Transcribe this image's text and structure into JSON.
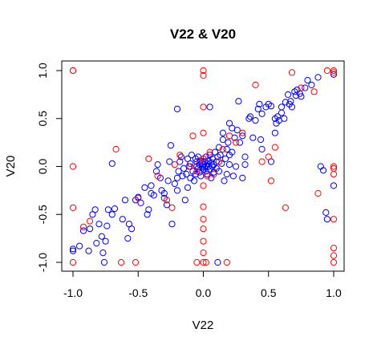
{
  "chart_data": {
    "type": "scatter",
    "title": "V22 & V20",
    "xlabel": "V22",
    "ylabel": "V20",
    "xlim": [
      -1.0,
      1.0
    ],
    "ylim": [
      -1.0,
      1.0
    ],
    "xticks": [
      "-1.0",
      "-0.5",
      "0.0",
      "0.5",
      "1.0"
    ],
    "yticks": [
      "-1.0",
      "-0.5",
      "0.0",
      "0.5",
      "1.0"
    ],
    "grid": false,
    "legend": "none",
    "series": [
      {
        "color": "#0000ff",
        "points": [
          [
            -1.0,
            -0.86
          ],
          [
            -1.0,
            -0.88
          ],
          [
            -0.95,
            -0.83
          ],
          [
            -0.92,
            -0.67
          ],
          [
            -0.88,
            -0.88
          ],
          [
            -0.87,
            -0.65
          ],
          [
            -0.85,
            -0.5
          ],
          [
            -0.83,
            -0.45
          ],
          [
            -0.82,
            -0.8
          ],
          [
            -0.8,
            -0.6
          ],
          [
            -0.78,
            -0.73
          ],
          [
            -0.77,
            -0.9
          ],
          [
            -0.76,
            -1.0
          ],
          [
            -0.75,
            -0.78
          ],
          [
            -0.74,
            -0.62
          ],
          [
            -0.73,
            -0.45
          ],
          [
            -0.7,
            -0.5
          ],
          [
            -0.68,
            -0.44
          ],
          [
            -0.62,
            -0.55
          ],
          [
            -0.6,
            -0.35
          ],
          [
            -0.58,
            -0.75
          ],
          [
            -0.57,
            -0.6
          ],
          [
            -0.55,
            -0.65
          ],
          [
            -0.52,
            -0.35
          ],
          [
            -0.5,
            -0.32
          ],
          [
            -0.48,
            -0.38
          ],
          [
            -0.45,
            -0.22
          ],
          [
            -0.43,
            -0.5
          ],
          [
            -0.42,
            -0.45
          ],
          [
            -0.4,
            -0.2
          ],
          [
            -0.4,
            -0.28
          ],
          [
            -0.38,
            -0.3
          ],
          [
            -0.36,
            -0.05
          ],
          [
            -0.35,
            0.02
          ],
          [
            -0.33,
            -0.12
          ],
          [
            -0.32,
            -0.25
          ],
          [
            -0.3,
            -0.28
          ],
          [
            -0.3,
            -0.33
          ],
          [
            -0.28,
            -0.4
          ],
          [
            -0.27,
            -0.15
          ],
          [
            -0.26,
            0.05
          ],
          [
            -0.25,
            0.22
          ],
          [
            -0.24,
            -0.6
          ],
          [
            -0.22,
            -0.18
          ],
          [
            -0.2,
            -0.12
          ],
          [
            -0.2,
            -0.25
          ],
          [
            -0.19,
            -0.05
          ],
          [
            -0.18,
            0.05
          ],
          [
            -0.17,
            0.1
          ],
          [
            -0.16,
            -0.1
          ],
          [
            -0.15,
            -0.02
          ],
          [
            -0.14,
            -0.35
          ],
          [
            -0.13,
            -0.08
          ],
          [
            -0.12,
            0.08
          ],
          [
            -0.12,
            -0.22
          ],
          [
            -0.11,
            0.0
          ],
          [
            -0.1,
            -0.12
          ],
          [
            -0.1,
            0.03
          ],
          [
            -0.09,
            0.12
          ],
          [
            -0.08,
            -0.05
          ],
          [
            -0.07,
            -0.15
          ],
          [
            -0.06,
            0.08
          ],
          [
            -0.06,
            -0.08
          ],
          [
            -0.05,
            0.0
          ],
          [
            -0.05,
            0.05
          ],
          [
            -0.04,
            -0.02
          ],
          [
            -0.04,
            0.1
          ],
          [
            -0.03,
            0.02
          ],
          [
            -0.03,
            -0.06
          ],
          [
            -0.02,
            0.06
          ],
          [
            -0.02,
            -0.1
          ],
          [
            -0.01,
            0.0
          ],
          [
            -0.01,
            0.04
          ],
          [
            0.0,
            0.02
          ],
          [
            0.0,
            -0.03
          ],
          [
            0.0,
            0.08
          ],
          [
            0.01,
            -0.01
          ],
          [
            0.01,
            0.05
          ],
          [
            0.02,
            0.0
          ],
          [
            0.02,
            0.1
          ],
          [
            0.02,
            -0.05
          ],
          [
            0.03,
            0.03
          ],
          [
            0.03,
            -0.08
          ],
          [
            0.04,
            0.06
          ],
          [
            0.04,
            0.0
          ],
          [
            0.05,
            0.12
          ],
          [
            0.05,
            -0.03
          ],
          [
            0.06,
            0.04
          ],
          [
            0.06,
            -0.12
          ],
          [
            0.07,
            0.0
          ],
          [
            0.07,
            0.08
          ],
          [
            0.08,
            0.02
          ],
          [
            0.08,
            -0.06
          ],
          [
            0.09,
            0.15
          ],
          [
            0.1,
            0.05
          ],
          [
            0.1,
            -0.02
          ],
          [
            0.11,
            0.1
          ],
          [
            0.12,
            0.2
          ],
          [
            0.12,
            -0.05
          ],
          [
            0.13,
            0.12
          ],
          [
            0.14,
            0.03
          ],
          [
            0.15,
            0.28
          ],
          [
            0.15,
            0.35
          ],
          [
            0.16,
            -0.15
          ],
          [
            0.17,
            0.08
          ],
          [
            0.18,
            0.18
          ],
          [
            0.18,
            -0.08
          ],
          [
            0.19,
            0.25
          ],
          [
            0.2,
            0.45
          ],
          [
            0.2,
            0.02
          ],
          [
            0.22,
            0.4
          ],
          [
            0.22,
            0.15
          ],
          [
            0.23,
            -0.1
          ],
          [
            0.24,
            0.3
          ],
          [
            0.25,
            0.0
          ],
          [
            0.26,
            0.38
          ],
          [
            0.27,
            0.68
          ],
          [
            0.28,
            0.25
          ],
          [
            0.3,
            0.32
          ],
          [
            0.3,
            -0.12
          ],
          [
            0.32,
            0.1
          ],
          [
            0.32,
            0.02
          ],
          [
            0.35,
            0.5
          ],
          [
            0.36,
            0.52
          ],
          [
            0.38,
            0.3
          ],
          [
            0.4,
            0.48
          ],
          [
            0.42,
            0.6
          ],
          [
            0.43,
            0.65
          ],
          [
            0.44,
            0.28
          ],
          [
            0.45,
            0.55
          ],
          [
            0.48,
            0.62
          ],
          [
            0.5,
            0.65
          ],
          [
            0.52,
            0.63
          ],
          [
            0.55,
            0.5
          ],
          [
            0.56,
            0.45
          ],
          [
            0.57,
            0.52
          ],
          [
            0.58,
            0.48
          ],
          [
            0.6,
            0.56
          ],
          [
            0.6,
            0.62
          ],
          [
            0.62,
            0.5
          ],
          [
            0.63,
            0.67
          ],
          [
            0.65,
            0.75
          ],
          [
            0.66,
            0.65
          ],
          [
            0.67,
            0.68
          ],
          [
            0.68,
            0.62
          ],
          [
            0.7,
            0.78
          ],
          [
            0.71,
            0.74
          ],
          [
            0.72,
            0.8
          ],
          [
            0.74,
            0.76
          ],
          [
            0.75,
            0.73
          ],
          [
            0.78,
            0.82
          ],
          [
            0.8,
            0.9
          ],
          [
            0.83,
            0.85
          ],
          [
            0.88,
            0.93
          ],
          [
            0.9,
            0.0
          ],
          [
            0.92,
            -0.04
          ],
          [
            0.94,
            -0.48
          ],
          [
            0.95,
            -0.55
          ],
          [
            1.0,
            0.96
          ],
          [
            1.0,
            -0.2
          ],
          [
            0.11,
            -1.0
          ],
          [
            -0.7,
            0.03
          ],
          [
            -0.2,
            0.6
          ],
          [
            0.05,
            0.62
          ],
          [
            0.2,
            0.12
          ],
          [
            0.55,
            0.35
          ],
          [
            0.52,
            0.05
          ],
          [
            0.45,
            0.18
          ]
        ]
      },
      {
        "color": "#ff0000",
        "points": [
          [
            -1.0,
            1.0
          ],
          [
            -1.0,
            1.0
          ],
          [
            -1.0,
            0.0
          ],
          [
            -1.0,
            -0.43
          ],
          [
            -1.0,
            -1.0
          ],
          [
            -0.92,
            -0.63
          ],
          [
            -0.87,
            -0.57
          ],
          [
            -0.67,
            0.18
          ],
          [
            -0.63,
            -1.0
          ],
          [
            -0.52,
            -1.0
          ],
          [
            -0.5,
            -0.33
          ],
          [
            -0.42,
            0.08
          ],
          [
            -0.35,
            -0.1
          ],
          [
            -0.28,
            -0.35
          ],
          [
            -0.24,
            -0.43
          ],
          [
            -0.22,
            0.02
          ],
          [
            -0.08,
            0.32
          ],
          [
            -0.05,
            -0.05
          ],
          [
            -0.1,
            0.0
          ],
          [
            0.0,
            1.0
          ],
          [
            0.0,
            0.95
          ],
          [
            0.0,
            0.62
          ],
          [
            0.0,
            0.35
          ],
          [
            0.0,
            0.08
          ],
          [
            0.0,
            -0.2
          ],
          [
            0.0,
            -0.42
          ],
          [
            0.0,
            -0.55
          ],
          [
            0.0,
            -0.65
          ],
          [
            0.0,
            -0.78
          ],
          [
            0.0,
            -0.9
          ],
          [
            0.0,
            -1.0
          ],
          [
            -0.05,
            -1.0
          ],
          [
            0.02,
            -1.0
          ],
          [
            0.08,
            -0.08
          ],
          [
            0.05,
            0.15
          ],
          [
            0.12,
            0.05
          ],
          [
            0.18,
            -1.0
          ],
          [
            0.2,
            0.32
          ],
          [
            0.25,
            0.25
          ],
          [
            0.3,
            0.35
          ],
          [
            0.4,
            0.85
          ],
          [
            0.45,
            0.05
          ],
          [
            0.5,
            0.1
          ],
          [
            0.52,
            -0.15
          ],
          [
            0.55,
            0.2
          ],
          [
            0.63,
            -0.43
          ],
          [
            0.68,
            0.98
          ],
          [
            0.75,
            0.82
          ],
          [
            0.85,
            0.78
          ],
          [
            0.88,
            -0.28
          ],
          [
            1.0,
            1.0
          ],
          [
            1.0,
            0.98
          ],
          [
            1.0,
            0.0
          ],
          [
            1.0,
            -0.02
          ],
          [
            1.0,
            -0.08
          ],
          [
            1.0,
            -0.55
          ],
          [
            1.0,
            -0.85
          ],
          [
            1.0,
            -0.93
          ],
          [
            1.0,
            -1.0
          ],
          [
            0.95,
            1.0
          ],
          [
            0.03,
            -0.1
          ],
          [
            -0.03,
            0.06
          ],
          [
            -0.18,
            0.12
          ],
          [
            0.15,
            0.18
          ]
        ]
      }
    ]
  }
}
